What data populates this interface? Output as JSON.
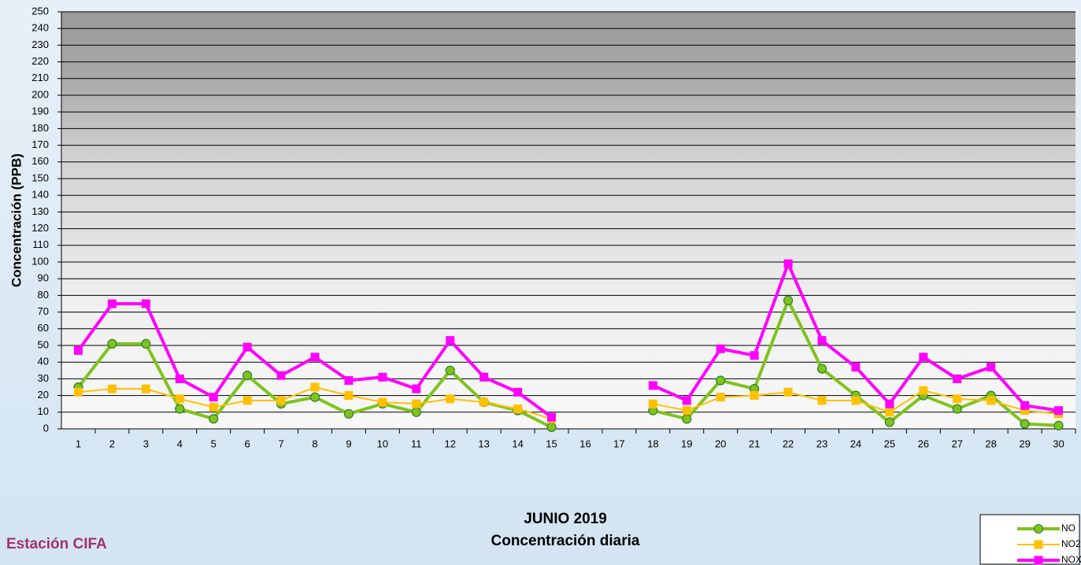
{
  "chart_data": {
    "type": "line",
    "title": "JUNIO 2019",
    "subtitle": "Concentración diaria",
    "station": "Estación CIFA",
    "y_label": "Concentración  (PPB)",
    "categories": [
      "1",
      "2",
      "3",
      "4",
      "5",
      "6",
      "7",
      "8",
      "9",
      "10",
      "11",
      "12",
      "13",
      "14",
      "15",
      "16",
      "17",
      "18",
      "19",
      "20",
      "21",
      "22",
      "23",
      "24",
      "25",
      "26",
      "27",
      "28",
      "29",
      "30"
    ],
    "series": [
      {
        "name": "NO",
        "color": "#7fc31c",
        "marker": "circle",
        "values": [
          25,
          51,
          51,
          12,
          6,
          32,
          15,
          19,
          9,
          15,
          10,
          35,
          16,
          11,
          1,
          null,
          null,
          11,
          6,
          29,
          24,
          77,
          36,
          20,
          4,
          20,
          12,
          20,
          3,
          2
        ]
      },
      {
        "name": "NO2",
        "color": "#ffc000",
        "marker": "square",
        "values": [
          22,
          24,
          24,
          18,
          13,
          17,
          17,
          25,
          20,
          16,
          15,
          18,
          16,
          12,
          6,
          null,
          null,
          15,
          11,
          19,
          20,
          22,
          17,
          17,
          10,
          23,
          18,
          17,
          11,
          9
        ]
      },
      {
        "name": "NOX",
        "color": "#ff00ff",
        "marker": "square",
        "values": [
          47,
          75,
          75,
          30,
          19,
          49,
          32,
          43,
          29,
          31,
          24,
          53,
          31,
          22,
          7,
          null,
          null,
          26,
          17,
          48,
          44,
          99,
          53,
          37,
          15,
          43,
          30,
          37,
          14,
          11
        ]
      }
    ],
    "ylim": [
      0,
      250
    ],
    "yticks": [
      0,
      10,
      20,
      30,
      40,
      50,
      60,
      70,
      80,
      90,
      100,
      110,
      120,
      130,
      140,
      150,
      160,
      170,
      180,
      190,
      200,
      210,
      220,
      230,
      240,
      250
    ],
    "grid": true
  }
}
